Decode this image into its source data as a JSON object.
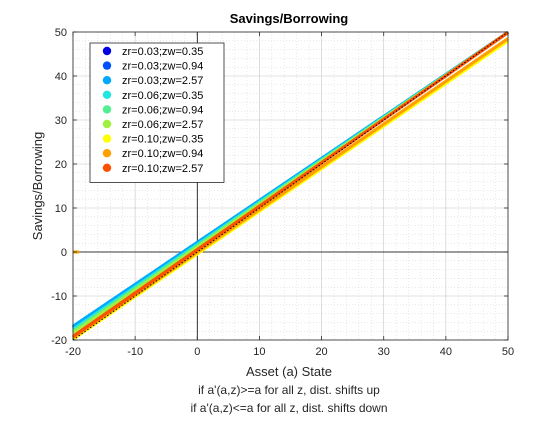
{
  "chart_data": {
    "type": "line",
    "title": "Savings/Borrowing",
    "xlabel": "Asset (a) State",
    "ylabel": "Savings/Borrowing",
    "xlim": [
      -20,
      50
    ],
    "ylim": [
      -20,
      50
    ],
    "xticks": [
      -20,
      -10,
      0,
      10,
      20,
      30,
      40,
      50
    ],
    "yticks": [
      -20,
      -10,
      0,
      10,
      20,
      30,
      40,
      50
    ],
    "grid": true,
    "minor_grid": true,
    "legend_position": "top-left",
    "captions": [
      "if a'(a,z)>=a for all z, dist. shifts up",
      "if a'(a,z)<=a for all z, dist. shifts down"
    ],
    "reference_line": {
      "style": "dotted",
      "color": "#000000",
      "x": [
        -20,
        50
      ],
      "y": [
        -20,
        50
      ]
    },
    "zero_marker": {
      "x": [
        -20,
        -19
      ],
      "y": [
        0,
        0
      ],
      "color": "#f0a000"
    },
    "series": [
      {
        "name": "zr=0.03;zw=0.35",
        "color": "#0000e0",
        "x": [
          -20,
          50
        ],
        "y": [
          -17.3,
          49.9
        ]
      },
      {
        "name": "zr=0.03;zw=0.94",
        "color": "#0050ff",
        "x": [
          -20,
          50
        ],
        "y": [
          -17.1,
          49.9
        ]
      },
      {
        "name": "zr=0.03;zw=2.57",
        "color": "#00a8ff",
        "x": [
          -20,
          50
        ],
        "y": [
          -16.9,
          49.9
        ]
      },
      {
        "name": "zr=0.06;zw=0.35",
        "color": "#20e8e0",
        "x": [
          -20,
          50
        ],
        "y": [
          -17.6,
          49.9
        ]
      },
      {
        "name": "zr=0.06;zw=0.94",
        "color": "#50f090",
        "x": [
          -20,
          50
        ],
        "y": [
          -18.0,
          49.9
        ]
      },
      {
        "name": "zr=0.06;zw=2.57",
        "color": "#a0f040",
        "x": [
          -20,
          50
        ],
        "y": [
          -18.4,
          49.9
        ]
      },
      {
        "name": "zr=0.10;zw=0.35",
        "color": "#ffff00",
        "x": [
          -20,
          50
        ],
        "y": [
          -19.8,
          48.0
        ]
      },
      {
        "name": "zr=0.10;zw=0.94",
        "color": "#ffa000",
        "x": [
          -20,
          50
        ],
        "y": [
          -19.5,
          48.5
        ]
      },
      {
        "name": "zr=0.10;zw=2.57",
        "color": "#ff5000",
        "x": [
          -20,
          50
        ],
        "y": [
          -19.2,
          49.9
        ]
      }
    ]
  }
}
